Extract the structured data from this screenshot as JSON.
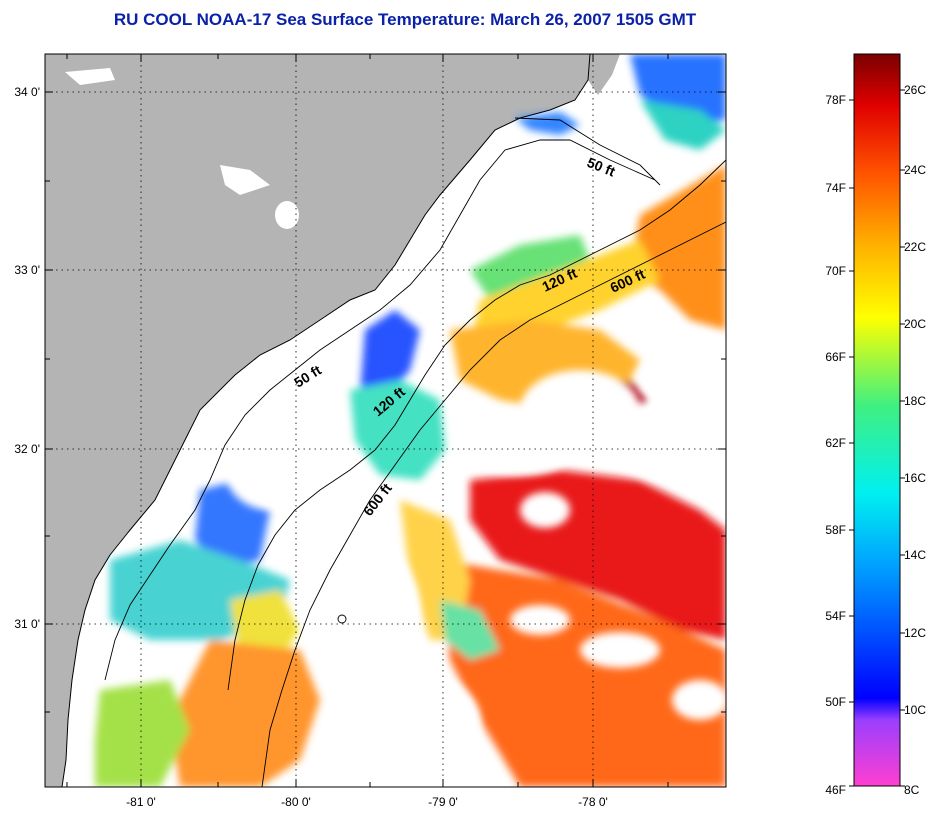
{
  "title": "RU COOL  NOAA-17  Sea Surface Temperature:  March 26, 2007 1505 GMT",
  "title_color": "#0b22a8",
  "map": {
    "lat_ticks": [
      "34 0'",
      "33 0'",
      "32 0'",
      "31 0'"
    ],
    "lon_ticks": [
      "-81 0'",
      "-80 0'",
      "-79 0'",
      "-78 0'"
    ],
    "land_color": "#b4b4b4",
    "contours": [
      "50 ft",
      "120 ft",
      "600 ft",
      "50 ft",
      "120 ft",
      "600 ft"
    ]
  },
  "colorbar": {
    "f_labels": [
      "78F",
      "74F",
      "70F",
      "66F",
      "62F",
      "58F",
      "54F",
      "50F",
      "46F"
    ],
    "c_labels": [
      "26C",
      "24C",
      "22C",
      "20C",
      "18C",
      "16C",
      "14C",
      "12C",
      "10C",
      "8C"
    ]
  }
}
